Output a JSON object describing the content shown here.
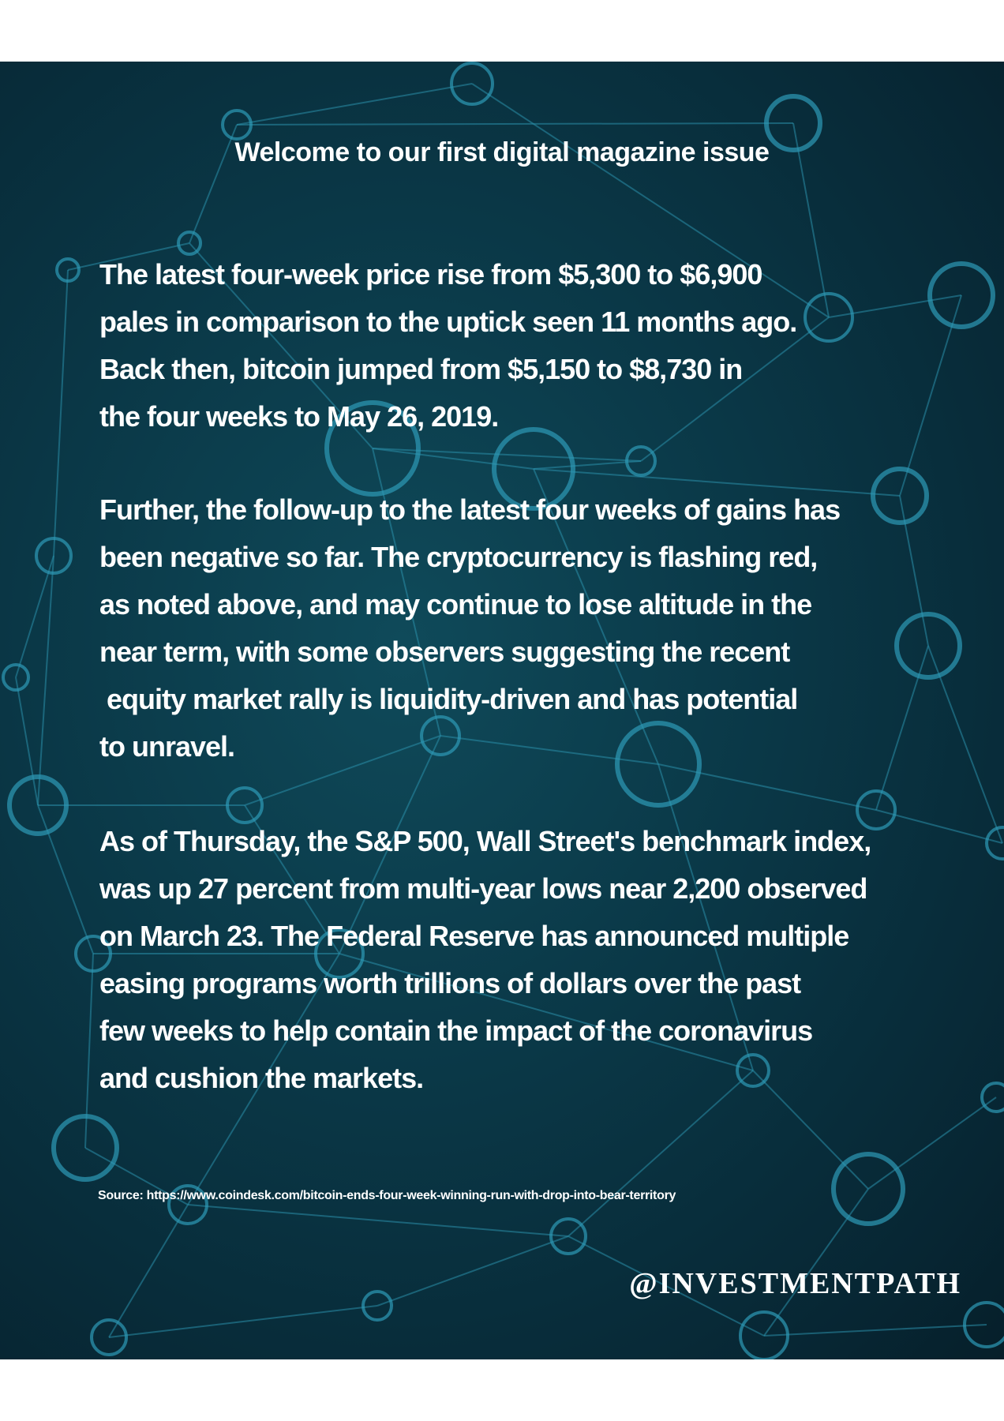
{
  "title": "Welcome to our first digital magazine issue",
  "paragraphs": [
    {
      "lines": [
        "The latest four-week price rise from $5,300 to $6,900",
        "pales in comparison to the uptick seen 11 months ago.",
        "Back then, bitcoin jumped from $5,150 to $8,730 in",
        "the four weeks to May 26, 2019."
      ]
    },
    {
      "lines": [
        "Further, the follow-up to the latest four weeks of gains has",
        "been negative so far. The cryptocurrency is flashing red,",
        "as noted above, and may continue to lose altitude in the",
        "near term, with some observers suggesting the recent",
        " equity market rally is liquidity-driven and has potential",
        "to unravel."
      ]
    },
    {
      "lines": [
        "As of Thursday, the S&P 500, Wall Street's benchmark index,",
        "was up 27 percent from multi-year lows near 2,200 observed",
        "on March 23. The Federal Reserve has announced multiple",
        "easing programs worth trillions of dollars over the past",
        "few weeks to help contain the impact of the coronavirus",
        "and cushion the markets."
      ]
    }
  ],
  "source": "Source: https://www.coindesk.com/bitcoin-ends-four-week-winning-run-with-drop-into-bear-territory",
  "handle": "@INVESTMENTPATH",
  "colors": {
    "background": "#0a3746",
    "network": "#2e9ab6",
    "text": "#ffffff",
    "page": "#ffffff"
  }
}
